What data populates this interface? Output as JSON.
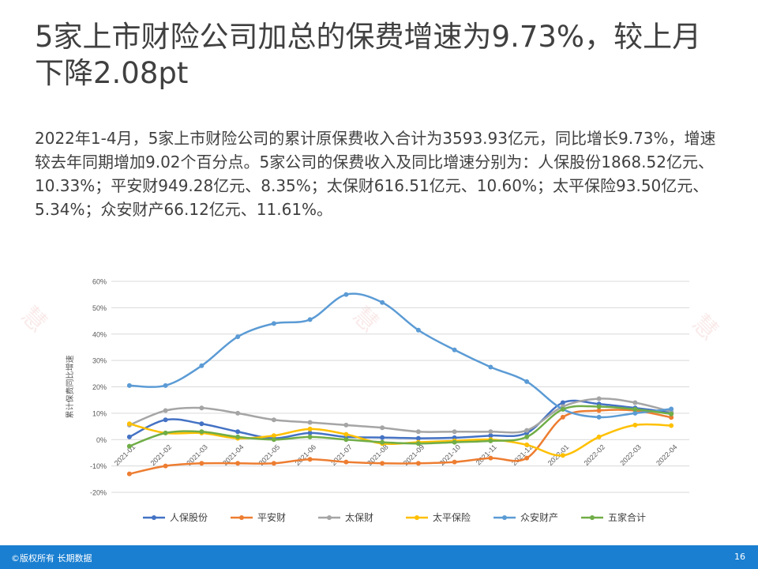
{
  "slide": {
    "title": "5家上市财险公司加总的保费增速为9.73%，较上月下降2.08pt",
    "body": "2022年1-4月，5家上市财险公司的累计原保费收入合计为3593.93亿元，同比增长9.73%，增速较去年同期增加9.02个百分点。5家公司的保费收入及同比增速分别为：人保股份1868.52亿元、10.33%；平安财949.28亿元、8.35%；太保财616.51亿元、10.60%；太平保险93.50亿元、5.34%；众安财产66.12亿元、11.61%。"
  },
  "footer": {
    "left": "©版权所有 长期数据",
    "page_number": "16"
  },
  "chart_data": {
    "type": "line",
    "ylabel": "累计保费同比增速",
    "ylim": [
      -20,
      60
    ],
    "yticks": [
      -20,
      -10,
      0,
      10,
      20,
      30,
      40,
      50,
      60
    ],
    "ytick_labels": [
      "-20%",
      "-10%",
      "0%",
      "10%",
      "20%",
      "30%",
      "40%",
      "50%",
      "60%"
    ],
    "categories": [
      "2021-01",
      "2021-02",
      "2021-03",
      "2021-04",
      "2021-05",
      "2021-06",
      "2021-07",
      "2021-08",
      "2021-09",
      "2021-10",
      "2021-11",
      "2021-12",
      "2022-01",
      "2022-02",
      "2022-03",
      "2022-04"
    ],
    "legend_position": "bottom",
    "grid": true,
    "series": [
      {
        "name": "人保股份",
        "color": "#4472c4",
        "values": [
          1.0,
          7.5,
          6.0,
          3.0,
          0.5,
          2.5,
          1.0,
          0.8,
          0.5,
          0.7,
          1.5,
          2.5,
          14.0,
          13.5,
          12.0,
          10.3
        ]
      },
      {
        "name": "平安财",
        "color": "#ed7d31",
        "values": [
          -13.0,
          -10.0,
          -9.0,
          -9.0,
          -9.0,
          -7.5,
          -8.5,
          -9.0,
          -9.0,
          -8.5,
          -7.0,
          -7.0,
          8.5,
          11.0,
          11.0,
          8.4
        ]
      },
      {
        "name": "太保财",
        "color": "#a5a5a5",
        "values": [
          5.5,
          11.0,
          12.0,
          10.0,
          7.5,
          6.5,
          5.5,
          4.5,
          3.0,
          3.0,
          3.0,
          3.5,
          12.5,
          15.5,
          14.0,
          10.6
        ]
      },
      {
        "name": "太平保险",
        "color": "#ffc000",
        "values": [
          6.0,
          2.5,
          2.5,
          0.5,
          1.5,
          4.0,
          2.0,
          -1.5,
          -1.0,
          -0.5,
          0.0,
          -2.0,
          -6.0,
          1.0,
          5.5,
          5.3
        ]
      },
      {
        "name": "众安财产",
        "color": "#5b9bd5",
        "values": [
          20.5,
          20.5,
          28.0,
          39.0,
          44.0,
          45.5,
          55.0,
          52.0,
          41.5,
          34.0,
          27.5,
          22.0,
          11.5,
          8.5,
          10.0,
          11.6
        ]
      },
      {
        "name": "五家合计",
        "color": "#70ad47",
        "values": [
          -2.5,
          2.5,
          3.0,
          1.0,
          0.0,
          1.0,
          0.0,
          -1.0,
          -1.5,
          -1.0,
          -0.5,
          1.0,
          11.5,
          12.5,
          11.5,
          9.7
        ]
      }
    ]
  }
}
